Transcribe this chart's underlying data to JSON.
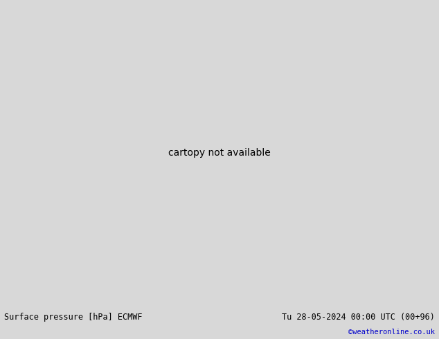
{
  "title_left": "Surface pressure [hPa] ECMWF",
  "title_right": "Tu 28-05-2024 00:00 UTC (00+96)",
  "copyright": "©weatheronline.co.uk",
  "ocean_color": "#c8d8e8",
  "land_color": "#c8eab4",
  "border_color": "#808080",
  "fig_width": 6.34,
  "fig_height": 4.9,
  "dpi": 100,
  "footer_bg": "#d8d8d8",
  "title_fontsize": 8.5,
  "copyright_fontsize": 7.5,
  "copyright_color": "#0000cc",
  "map_extent": [
    -20,
    55,
    -38,
    40
  ],
  "red_contour_color": "#cc0000",
  "blue_contour_color": "#0000cc",
  "black_contour_color": "#000000"
}
